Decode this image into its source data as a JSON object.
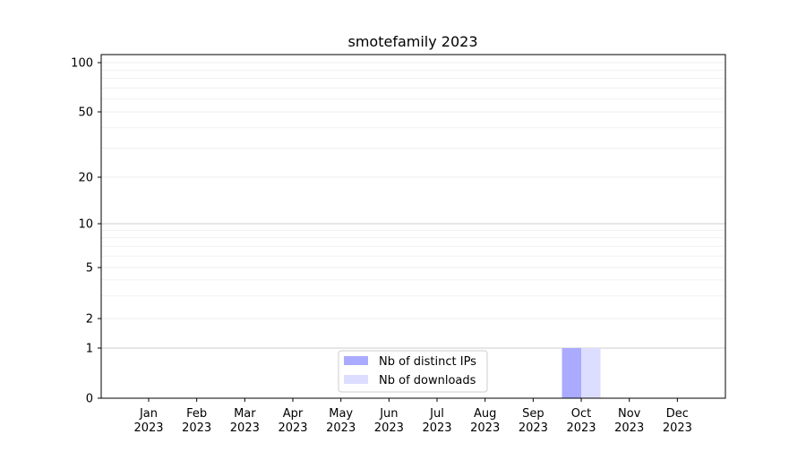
{
  "chart_data": {
    "type": "bar",
    "title": "smotefamily 2023",
    "xlabel": "",
    "ylabel": "",
    "categories": [
      "Jan\n2023",
      "Feb\n2023",
      "Mar\n2023",
      "Apr\n2023",
      "May\n2023",
      "Jun\n2023",
      "Jul\n2023",
      "Aug\n2023",
      "Sep\n2023",
      "Oct\n2023",
      "Nov\n2023",
      "Dec\n2023"
    ],
    "y_scale": "symlog",
    "y_ticks": [
      0,
      1,
      2,
      5,
      10,
      20,
      50,
      100
    ],
    "ylim": [
      0,
      130
    ],
    "grid": true,
    "legend_position": "bottom-center",
    "series": [
      {
        "name": "Nb of distinct IPs",
        "color": "#aaaaff",
        "values": [
          0,
          0,
          0,
          0,
          0,
          0,
          0,
          0,
          0,
          1,
          0,
          0
        ]
      },
      {
        "name": "Nb of downloads",
        "color": "#ddddff",
        "values": [
          0,
          0,
          0,
          0,
          0,
          0,
          0,
          0,
          0,
          1,
          0,
          0
        ]
      }
    ]
  }
}
